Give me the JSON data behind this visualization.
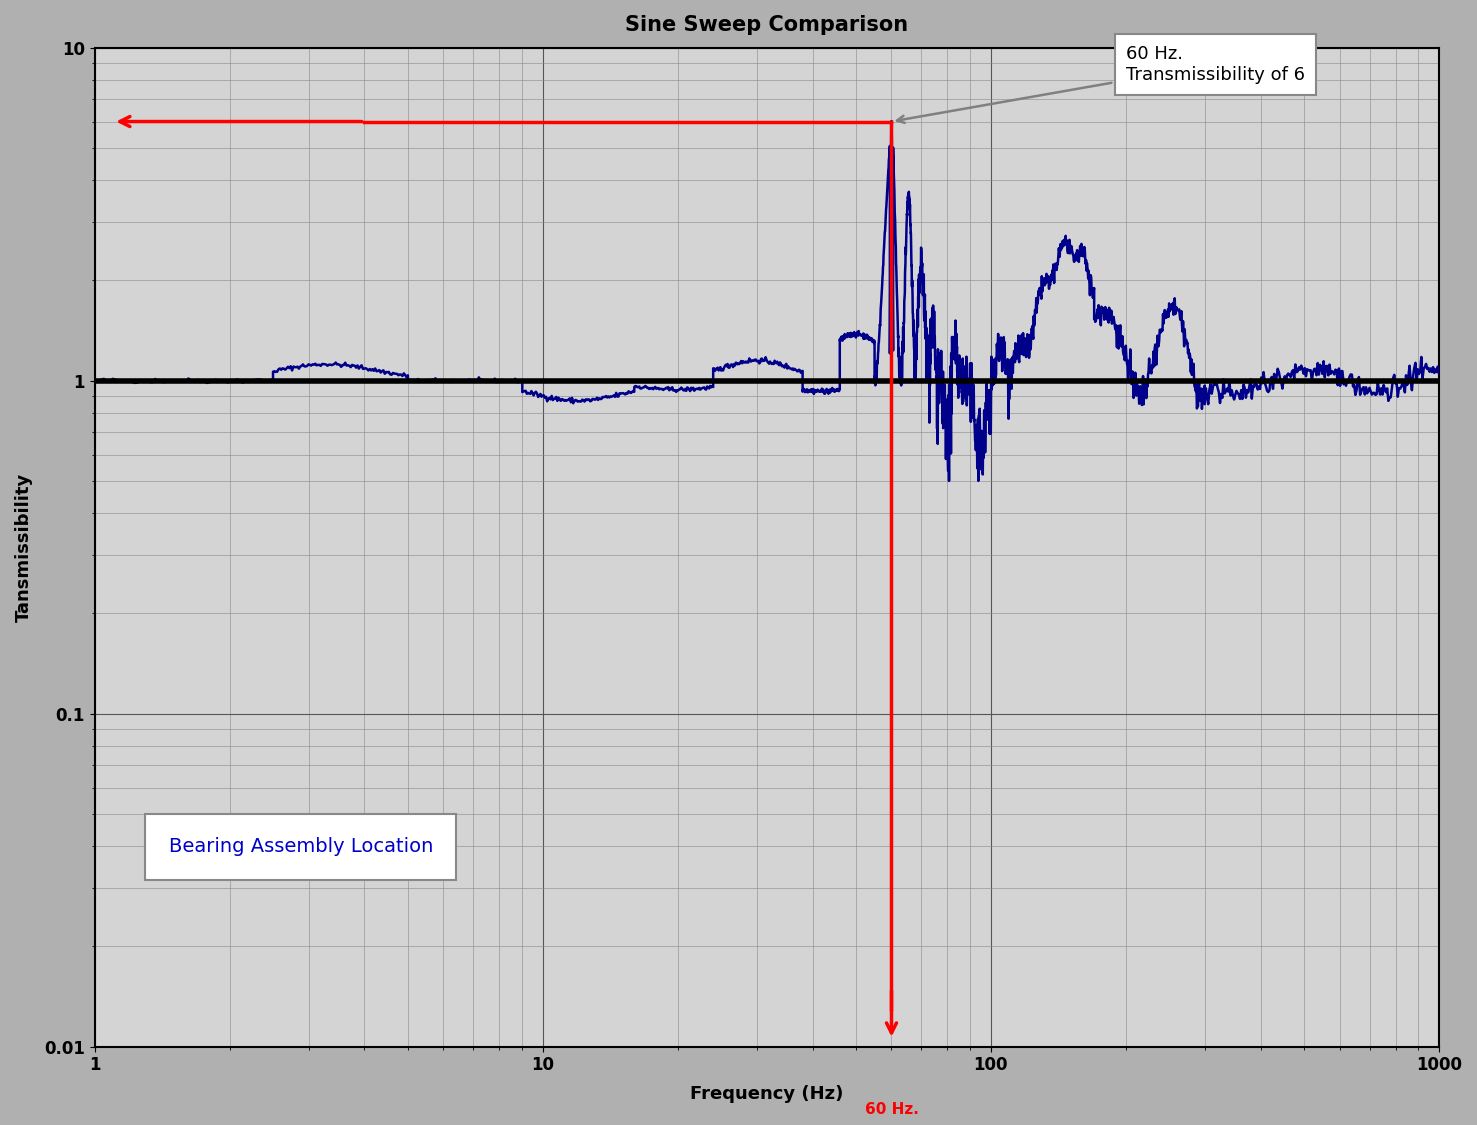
{
  "title": "Sine Sweep Comparison",
  "xlabel": "Frequency (Hz)",
  "ylabel": "Tansmissibility",
  "xlim": [
    1,
    1000
  ],
  "ylim": [
    0.01,
    10
  ],
  "annotation_text": "60 Hz.\nTransmissibility of 6",
  "label_text": "Bearing Assembly Location",
  "hz60_label": "60 Hz.",
  "horizontal_line_y": 6.0,
  "vertical_line_x": 60.0,
  "unity_line_y": 1.0,
  "fig_bg_color": "#b0b0b0",
  "plot_bg_color": "#d4d4d4",
  "line_color": "#00008B",
  "red_color": "#FF0000",
  "black_color": "#000000",
  "title_fontsize": 15,
  "label_fontsize": 13,
  "tick_fontsize": 12,
  "annotation_fontsize": 13,
  "bearing_fontsize": 14
}
